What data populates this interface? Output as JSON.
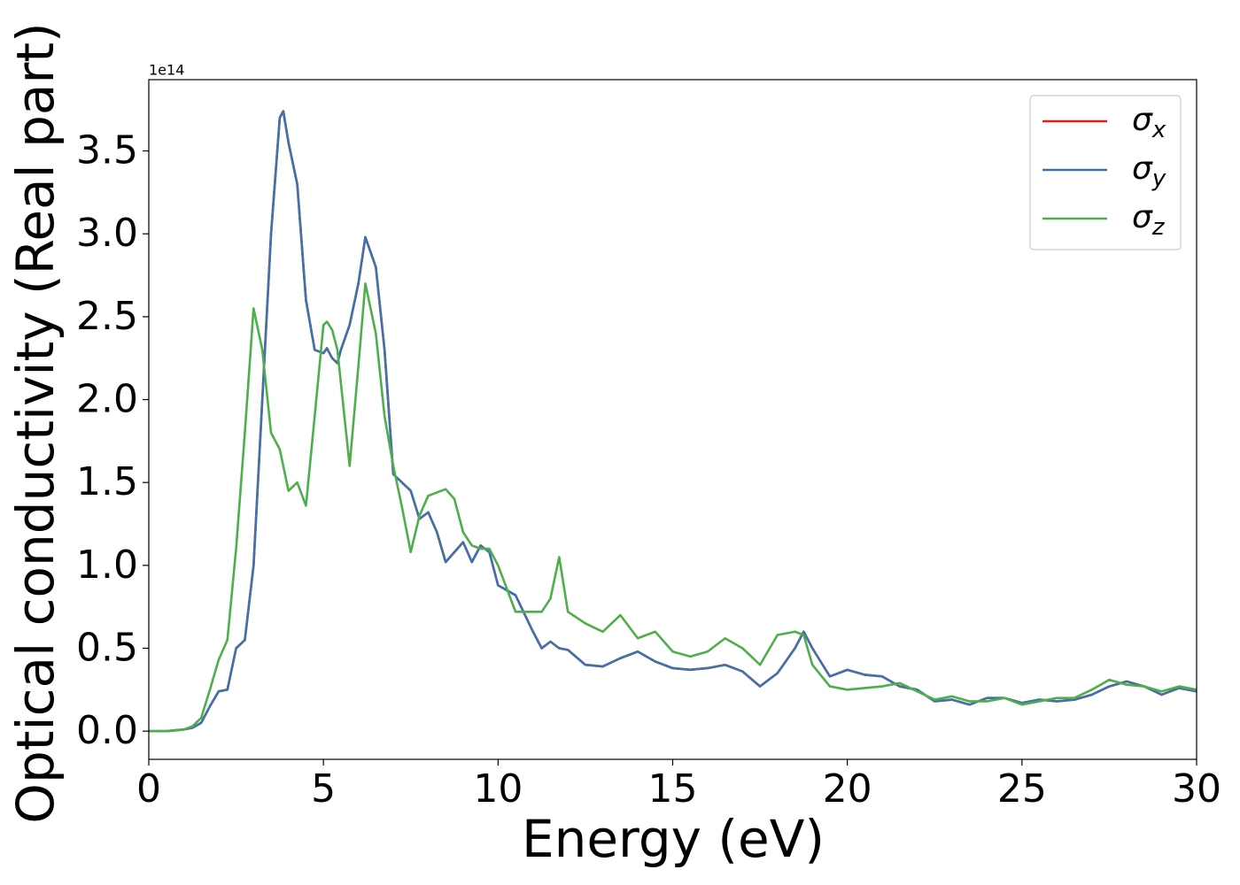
{
  "chart_data": {
    "type": "line",
    "x_label": "Energy (eV)",
    "y_label": "Optical conductivity (Real part)",
    "offset_label": "1e14",
    "x": [
      0,
      0.5,
      1,
      1.25,
      1.5,
      1.75,
      2,
      2.25,
      2.5,
      2.75,
      3,
      3.25,
      3.5,
      3.75,
      3.85,
      4,
      4.25,
      4.5,
      4.75,
      5,
      5.1,
      5.25,
      5.4,
      5.5,
      5.75,
      6,
      6.2,
      6.5,
      6.75,
      7,
      7.25,
      7.5,
      7.75,
      8,
      8.25,
      8.5,
      8.75,
      9,
      9.25,
      9.5,
      9.75,
      10,
      10.5,
      11,
      11.25,
      11.5,
      11.75,
      12,
      12.5,
      13,
      13.5,
      14,
      14.5,
      15,
      15.5,
      16,
      16.5,
      17,
      17.5,
      18,
      18.5,
      18.75,
      19,
      19.5,
      20,
      20.5,
      21,
      21.5,
      22,
      22.5,
      23,
      23.5,
      24,
      24.5,
      25,
      25.5,
      26,
      26.5,
      27,
      27.5,
      28,
      28.5,
      29,
      29.5,
      30
    ],
    "series": [
      {
        "name": "σx",
        "color": "#e41a1c",
        "values": [
          0,
          0,
          0.01,
          0.02,
          0.05,
          0.15,
          0.24,
          0.25,
          0.5,
          0.55,
          1.0,
          2.0,
          3.0,
          3.7,
          3.74,
          3.55,
          3.3,
          2.6,
          2.3,
          2.28,
          2.31,
          2.25,
          2.22,
          2.3,
          2.45,
          2.7,
          2.98,
          2.8,
          2.3,
          1.55,
          1.5,
          1.45,
          1.28,
          1.32,
          1.2,
          1.02,
          1.08,
          1.14,
          1.02,
          1.12,
          1.08,
          0.88,
          0.82,
          0.6,
          0.5,
          0.54,
          0.5,
          0.49,
          0.4,
          0.39,
          0.44,
          0.48,
          0.42,
          0.38,
          0.37,
          0.38,
          0.4,
          0.36,
          0.27,
          0.35,
          0.5,
          0.6,
          0.5,
          0.33,
          0.37,
          0.34,
          0.33,
          0.27,
          0.25,
          0.18,
          0.19,
          0.16,
          0.2,
          0.2,
          0.17,
          0.19,
          0.18,
          0.19,
          0.22,
          0.27,
          0.3,
          0.27,
          0.22,
          0.26,
          0.24
        ]
      },
      {
        "name": "σy",
        "color": "#3f72ad",
        "values": [
          0,
          0,
          0.01,
          0.02,
          0.05,
          0.15,
          0.24,
          0.25,
          0.5,
          0.55,
          1.0,
          2.0,
          3.0,
          3.7,
          3.74,
          3.55,
          3.3,
          2.6,
          2.3,
          2.28,
          2.31,
          2.25,
          2.22,
          2.3,
          2.45,
          2.7,
          2.98,
          2.8,
          2.3,
          1.55,
          1.5,
          1.45,
          1.28,
          1.32,
          1.2,
          1.02,
          1.08,
          1.14,
          1.02,
          1.12,
          1.08,
          0.88,
          0.82,
          0.6,
          0.5,
          0.54,
          0.5,
          0.49,
          0.4,
          0.39,
          0.44,
          0.48,
          0.42,
          0.38,
          0.37,
          0.38,
          0.4,
          0.36,
          0.27,
          0.35,
          0.5,
          0.6,
          0.5,
          0.33,
          0.37,
          0.34,
          0.33,
          0.27,
          0.25,
          0.18,
          0.19,
          0.16,
          0.2,
          0.2,
          0.17,
          0.19,
          0.18,
          0.19,
          0.22,
          0.27,
          0.3,
          0.27,
          0.22,
          0.26,
          0.24
        ]
      },
      {
        "name": "σz",
        "color": "#4daf4a",
        "values": [
          0,
          0,
          0.01,
          0.03,
          0.08,
          0.25,
          0.43,
          0.55,
          1.1,
          1.8,
          2.55,
          2.3,
          1.8,
          1.7,
          1.6,
          1.45,
          1.5,
          1.36,
          1.9,
          2.45,
          2.47,
          2.42,
          2.3,
          2.1,
          1.6,
          2.2,
          2.7,
          2.4,
          1.9,
          1.6,
          1.35,
          1.08,
          1.3,
          1.42,
          1.44,
          1.46,
          1.4,
          1.2,
          1.12,
          1.1,
          1.1,
          1.0,
          0.72,
          0.72,
          0.72,
          0.8,
          1.05,
          0.72,
          0.65,
          0.6,
          0.7,
          0.56,
          0.6,
          0.48,
          0.45,
          0.48,
          0.56,
          0.5,
          0.4,
          0.58,
          0.6,
          0.58,
          0.4,
          0.27,
          0.25,
          0.26,
          0.27,
          0.29,
          0.24,
          0.19,
          0.21,
          0.18,
          0.18,
          0.2,
          0.16,
          0.18,
          0.2,
          0.2,
          0.25,
          0.31,
          0.28,
          0.27,
          0.24,
          0.27,
          0.25
        ]
      }
    ],
    "xlim": [
      0,
      30
    ],
    "xticks": [
      0,
      5,
      10,
      15,
      20,
      25,
      30
    ],
    "ylim": [
      -0.17,
      3.93
    ],
    "yticks": [
      {
        "value": 0,
        "label": "0.0"
      },
      0.5,
      {
        "value": 1,
        "label": "1.0"
      },
      1.5,
      {
        "value": 2,
        "label": "2.0"
      },
      2.5,
      {
        "value": 3,
        "label": "3.0"
      },
      3.5
    ],
    "grid": false,
    "legend": "upper right"
  }
}
